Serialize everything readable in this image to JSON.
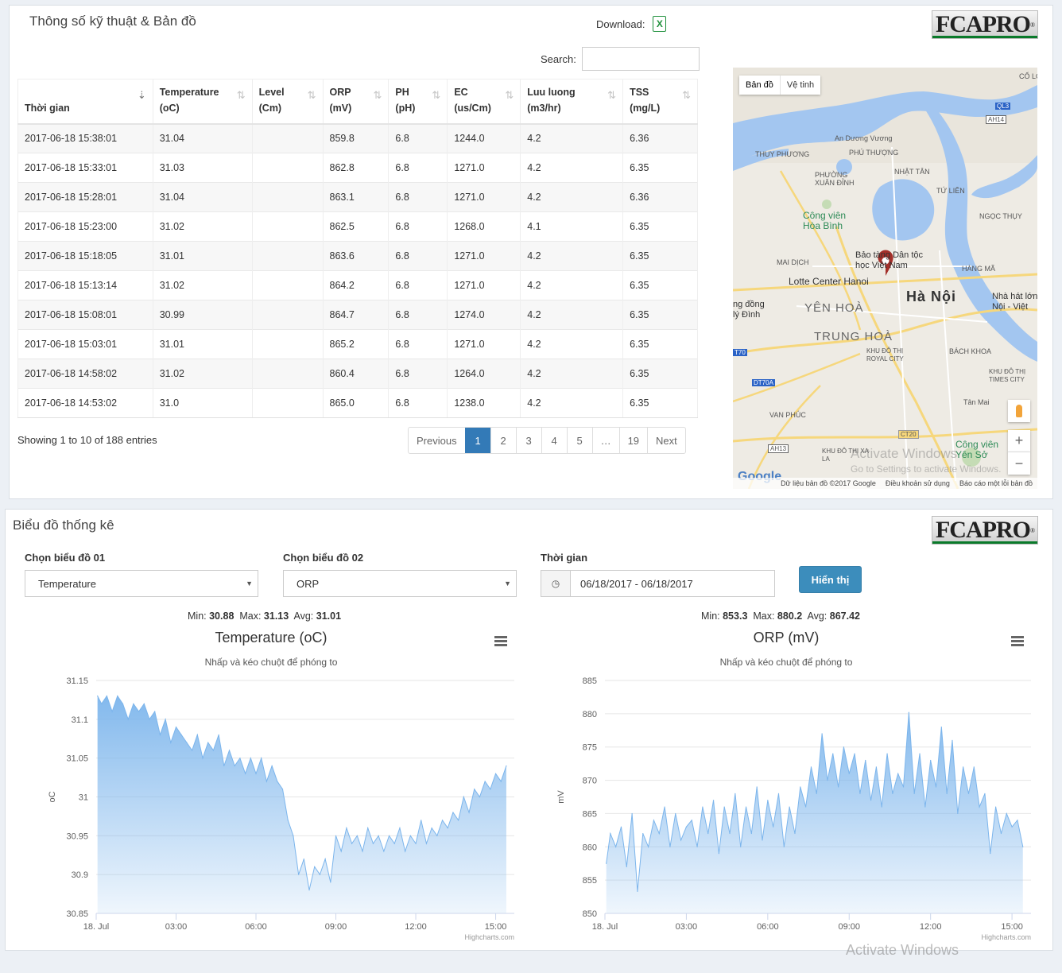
{
  "top_panel": {
    "title": "Thông số kỹ thuật & Bản đồ",
    "download_label": "Download:",
    "excel_icon": "X",
    "logo": "FCAPRO",
    "logo_mark": "®",
    "search_label": "Search:",
    "search_value": "",
    "columns": [
      {
        "line1": "",
        "line2": "Thời gian"
      },
      {
        "line1": "Temperature",
        "line2": "(oC)"
      },
      {
        "line1": "Level",
        "line2": "(Cm)"
      },
      {
        "line1": "ORP",
        "line2": "(mV)"
      },
      {
        "line1": "PH",
        "line2": "(pH)"
      },
      {
        "line1": "EC",
        "line2": "(us/Cm)"
      },
      {
        "line1": "Luu luong",
        "line2": "(m3/hr)"
      },
      {
        "line1": "TSS",
        "line2": "(mg/L)"
      }
    ],
    "rows": [
      [
        "2017-06-18 15:38:01",
        "31.04",
        "",
        "859.8",
        "6.8",
        "1244.0",
        "4.2",
        "6.36"
      ],
      [
        "2017-06-18 15:33:01",
        "31.03",
        "",
        "862.8",
        "6.8",
        "1271.0",
        "4.2",
        "6.35"
      ],
      [
        "2017-06-18 15:28:01",
        "31.04",
        "",
        "863.1",
        "6.8",
        "1271.0",
        "4.2",
        "6.36"
      ],
      [
        "2017-06-18 15:23:00",
        "31.02",
        "",
        "862.5",
        "6.8",
        "1268.0",
        "4.1",
        "6.35"
      ],
      [
        "2017-06-18 15:18:05",
        "31.01",
        "",
        "863.6",
        "6.8",
        "1271.0",
        "4.2",
        "6.35"
      ],
      [
        "2017-06-18 15:13:14",
        "31.02",
        "",
        "864.2",
        "6.8",
        "1271.0",
        "4.2",
        "6.35"
      ],
      [
        "2017-06-18 15:08:01",
        "30.99",
        "",
        "864.7",
        "6.8",
        "1274.0",
        "4.2",
        "6.35"
      ],
      [
        "2017-06-18 15:03:01",
        "31.01",
        "",
        "865.2",
        "6.8",
        "1271.0",
        "4.2",
        "6.35"
      ],
      [
        "2017-06-18 14:58:02",
        "31.02",
        "",
        "860.4",
        "6.8",
        "1264.0",
        "4.2",
        "6.35"
      ],
      [
        "2017-06-18 14:53:02",
        "31.0",
        "",
        "865.0",
        "6.8",
        "1238.0",
        "4.2",
        "6.35"
      ]
    ],
    "info": "Showing 1 to 10 of 188 entries",
    "pagination": [
      "Previous",
      "1",
      "2",
      "3",
      "4",
      "5",
      "…",
      "19",
      "Next"
    ],
    "active_page": "1",
    "map": {
      "tab_map": "Bản đồ",
      "tab_satellite": "Vệ tinh",
      "labels": {
        "ha_noi": "Hà Nội",
        "yen_hoa": "YÊN HOÀ",
        "trung_hoa": "TRUNG HOÀ",
        "lotte": "Lotte Center Hanoi",
        "museum": "Bảo tàng Dân tộc học Việt Nam",
        "park": "Công viên Hòa Bình",
        "park2": "Công viên Yên Sở",
        "thuy_phuong": "THUY PHƯƠNG",
        "phu_thuong": "PHÚ THƯỢNG",
        "nhat_tan": "NHẬT TÂN",
        "tu_lien": "TỨ LIÊN",
        "ngoc_thuy": "NGỌC THỤY",
        "mai_dich": "MAI DỊCH",
        "hang_ma": "HÀNG MÃ",
        "bach_khoa": "BÁCH KHOA",
        "van_phuc": "VAN PHÚC",
        "co_loa": "CỔ LOA",
        "nha_hat": "Nhà hát lớn Nội - Việt",
        "ky_dinh": "ng đồng lý Đình",
        "xuan_dinh": "PHƯỜNG XUÂN ĐỈNH",
        "royal": "KHU ĐÔ THỊ ROYAL CITY",
        "times": "KHU ĐÔ THỊ TIMES CITY",
        "an_duong": "An Dương Vương",
        "tan_mai": "Tân Mai",
        "la_khe": "KHU ĐÔ THỊ XA LA"
      },
      "roads": [
        "QL3",
        "AH14",
        "DT70A",
        "CT20",
        "AH13",
        "T70"
      ],
      "zoom_in": "+",
      "zoom_out": "−",
      "footer": [
        "Dữ liệu bản đồ ©2017 Google",
        "Điều khoản sử dụng",
        "Báo cáo một lỗi bản đồ"
      ],
      "google": "Google"
    },
    "watermark_line1": "Activate Windows",
    "watermark_line2": "Go to Settings to activate Windows."
  },
  "bottom_panel": {
    "title": "Biểu đồ thống kê",
    "logo": "FCAPRO",
    "logo_mark": "®",
    "chart1_label": "Chọn biểu đồ 01",
    "chart1_value": "Temperature",
    "chart2_label": "Chọn biểu đồ 02",
    "chart2_value": "ORP",
    "time_label": "Thời gian",
    "time_value": "06/18/2017 - 06/18/2017",
    "show_button": "Hiển thị",
    "stats1": {
      "min_label": "Min:",
      "min": "30.88",
      "max_label": "Max:",
      "max": "31.13",
      "avg_label": "Avg:",
      "avg": "31.01"
    },
    "stats2": {
      "min_label": "Min:",
      "min": "853.3",
      "max_label": "Max:",
      "max": "880.2",
      "avg_label": "Avg:",
      "avg": "867.42"
    },
    "watermark": "Activate Windows"
  },
  "chart_data": [
    {
      "type": "area",
      "title": "Temperature (oC)",
      "subtitle": "Nhấp và kéo chuột để phóng to",
      "ylabel": "oC",
      "xlabel": "",
      "xlim": [
        0,
        15.7
      ],
      "ylim": [
        30.85,
        31.15
      ],
      "yticks": [
        "31.15",
        "31.1",
        "31.05",
        "31",
        "30.95",
        "30.9",
        "30.85"
      ],
      "xticks": [
        {
          "at": 0,
          "label": "18. Jul"
        },
        {
          "at": 3,
          "label": "03:00"
        },
        {
          "at": 6,
          "label": "06:00"
        },
        {
          "at": 9,
          "label": "09:00"
        },
        {
          "at": 12,
          "label": "12:00"
        },
        {
          "at": 15,
          "label": "15:00"
        }
      ],
      "credit": "Highcharts.com",
      "color": "#7cb5ec",
      "points": [
        [
          0.05,
          31.13
        ],
        [
          0.2,
          31.12
        ],
        [
          0.4,
          31.13
        ],
        [
          0.6,
          31.11
        ],
        [
          0.8,
          31.13
        ],
        [
          1.0,
          31.12
        ],
        [
          1.2,
          31.1
        ],
        [
          1.4,
          31.12
        ],
        [
          1.6,
          31.11
        ],
        [
          1.8,
          31.12
        ],
        [
          2.0,
          31.1
        ],
        [
          2.2,
          31.11
        ],
        [
          2.4,
          31.08
        ],
        [
          2.6,
          31.1
        ],
        [
          2.8,
          31.07
        ],
        [
          3.0,
          31.09
        ],
        [
          3.2,
          31.08
        ],
        [
          3.4,
          31.07
        ],
        [
          3.6,
          31.06
        ],
        [
          3.8,
          31.08
        ],
        [
          4.0,
          31.05
        ],
        [
          4.2,
          31.07
        ],
        [
          4.4,
          31.06
        ],
        [
          4.6,
          31.08
        ],
        [
          4.8,
          31.04
        ],
        [
          5.0,
          31.06
        ],
        [
          5.2,
          31.04
        ],
        [
          5.4,
          31.05
        ],
        [
          5.6,
          31.03
        ],
        [
          5.8,
          31.05
        ],
        [
          6.0,
          31.03
        ],
        [
          6.2,
          31.05
        ],
        [
          6.4,
          31.02
        ],
        [
          6.6,
          31.04
        ],
        [
          6.8,
          31.02
        ],
        [
          7.0,
          31.01
        ],
        [
          7.2,
          30.97
        ],
        [
          7.4,
          30.95
        ],
        [
          7.6,
          30.9
        ],
        [
          7.8,
          30.92
        ],
        [
          8.0,
          30.88
        ],
        [
          8.2,
          30.91
        ],
        [
          8.4,
          30.9
        ],
        [
          8.6,
          30.92
        ],
        [
          8.8,
          30.89
        ],
        [
          9.0,
          30.95
        ],
        [
          9.2,
          30.93
        ],
        [
          9.4,
          30.96
        ],
        [
          9.6,
          30.94
        ],
        [
          9.8,
          30.95
        ],
        [
          10.0,
          30.93
        ],
        [
          10.2,
          30.96
        ],
        [
          10.4,
          30.94
        ],
        [
          10.6,
          30.95
        ],
        [
          10.8,
          30.93
        ],
        [
          11.0,
          30.95
        ],
        [
          11.2,
          30.94
        ],
        [
          11.4,
          30.96
        ],
        [
          11.6,
          30.93
        ],
        [
          11.8,
          30.95
        ],
        [
          12.0,
          30.94
        ],
        [
          12.2,
          30.97
        ],
        [
          12.4,
          30.94
        ],
        [
          12.6,
          30.96
        ],
        [
          12.8,
          30.95
        ],
        [
          13.0,
          30.97
        ],
        [
          13.2,
          30.96
        ],
        [
          13.4,
          30.98
        ],
        [
          13.6,
          30.97
        ],
        [
          13.8,
          31.0
        ],
        [
          14.0,
          30.98
        ],
        [
          14.2,
          31.01
        ],
        [
          14.4,
          31.0
        ],
        [
          14.6,
          31.02
        ],
        [
          14.8,
          31.01
        ],
        [
          15.0,
          31.03
        ],
        [
          15.2,
          31.02
        ],
        [
          15.4,
          31.04
        ]
      ]
    },
    {
      "type": "area",
      "title": "ORP (mV)",
      "subtitle": "Nhấp và kéo chuột để phóng to",
      "ylabel": "mV",
      "xlabel": "",
      "xlim": [
        0,
        15.7
      ],
      "ylim": [
        850,
        885
      ],
      "yticks": [
        "885",
        "880",
        "875",
        "870",
        "865",
        "860",
        "855",
        "850"
      ],
      "xticks": [
        {
          "at": 0,
          "label": "18. Jul"
        },
        {
          "at": 3,
          "label": "03:00"
        },
        {
          "at": 6,
          "label": "06:00"
        },
        {
          "at": 9,
          "label": "09:00"
        },
        {
          "at": 12,
          "label": "12:00"
        },
        {
          "at": 15,
          "label": "15:00"
        }
      ],
      "credit": "Highcharts.com",
      "color": "#7cb5ec",
      "points": [
        [
          0.05,
          857.5
        ],
        [
          0.2,
          862
        ],
        [
          0.4,
          860
        ],
        [
          0.6,
          863
        ],
        [
          0.8,
          857
        ],
        [
          1.0,
          865
        ],
        [
          1.2,
          853.3
        ],
        [
          1.4,
          862
        ],
        [
          1.6,
          860
        ],
        [
          1.8,
          864
        ],
        [
          2.0,
          862
        ],
        [
          2.2,
          866
        ],
        [
          2.4,
          860
        ],
        [
          2.6,
          865
        ],
        [
          2.8,
          861
        ],
        [
          3.0,
          863
        ],
        [
          3.2,
          864
        ],
        [
          3.4,
          860
        ],
        [
          3.6,
          866
        ],
        [
          3.8,
          862
        ],
        [
          4.0,
          867
        ],
        [
          4.2,
          859
        ],
        [
          4.4,
          866
        ],
        [
          4.6,
          862
        ],
        [
          4.8,
          868
        ],
        [
          5.0,
          860
        ],
        [
          5.2,
          866
        ],
        [
          5.4,
          862
        ],
        [
          5.6,
          869
        ],
        [
          5.8,
          861
        ],
        [
          6.0,
          867
        ],
        [
          6.2,
          863
        ],
        [
          6.4,
          868
        ],
        [
          6.6,
          860
        ],
        [
          6.8,
          866
        ],
        [
          7.0,
          862
        ],
        [
          7.2,
          869
        ],
        [
          7.4,
          866
        ],
        [
          7.6,
          872
        ],
        [
          7.8,
          868
        ],
        [
          8.0,
          877
        ],
        [
          8.2,
          870
        ],
        [
          8.4,
          874
        ],
        [
          8.6,
          869
        ],
        [
          8.8,
          875
        ],
        [
          9.0,
          871
        ],
        [
          9.2,
          874
        ],
        [
          9.4,
          868
        ],
        [
          9.6,
          873
        ],
        [
          9.8,
          867
        ],
        [
          10.0,
          872
        ],
        [
          10.2,
          866
        ],
        [
          10.4,
          874
        ],
        [
          10.6,
          868
        ],
        [
          10.8,
          871
        ],
        [
          11.0,
          869
        ],
        [
          11.2,
          880.2
        ],
        [
          11.4,
          868
        ],
        [
          11.6,
          874
        ],
        [
          11.8,
          866
        ],
        [
          12.0,
          873
        ],
        [
          12.2,
          869
        ],
        [
          12.4,
          878
        ],
        [
          12.6,
          868
        ],
        [
          12.8,
          876
        ],
        [
          13.0,
          865
        ],
        [
          13.2,
          872
        ],
        [
          13.4,
          868
        ],
        [
          13.6,
          872
        ],
        [
          13.8,
          866
        ],
        [
          14.0,
          868
        ],
        [
          14.2,
          859
        ],
        [
          14.4,
          866
        ],
        [
          14.6,
          862
        ],
        [
          14.8,
          865
        ],
        [
          15.0,
          863
        ],
        [
          15.2,
          864
        ],
        [
          15.4,
          860
        ]
      ]
    }
  ]
}
